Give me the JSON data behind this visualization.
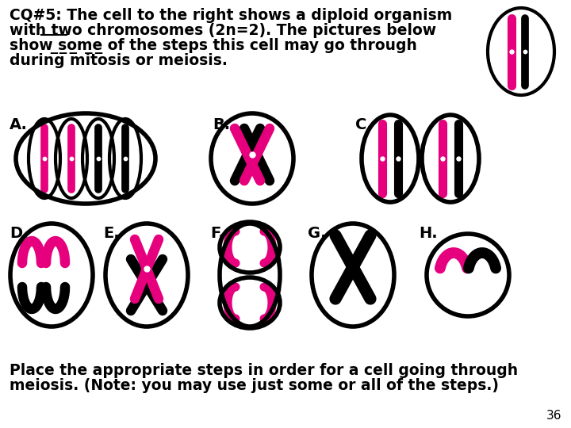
{
  "bg_color": "#ffffff",
  "pink": "#e6007e",
  "blk": "#000000",
  "title_text": "CQ#5: The cell to the right shows a diploid organism\nwith two chromosomes (2n=2). The pictures below\nshow some of the steps this cell may go through\nduring mitosis or meiosis.",
  "bottom1": "Place the appropriate steps in order for a cell going through",
  "bottom2": "meiosis. (Note: you may use just some or all of the steps.)",
  "page_num": "36",
  "labels": [
    "A.",
    "B.",
    "C.",
    "D.",
    "E.",
    "F.",
    "G.",
    "H."
  ]
}
